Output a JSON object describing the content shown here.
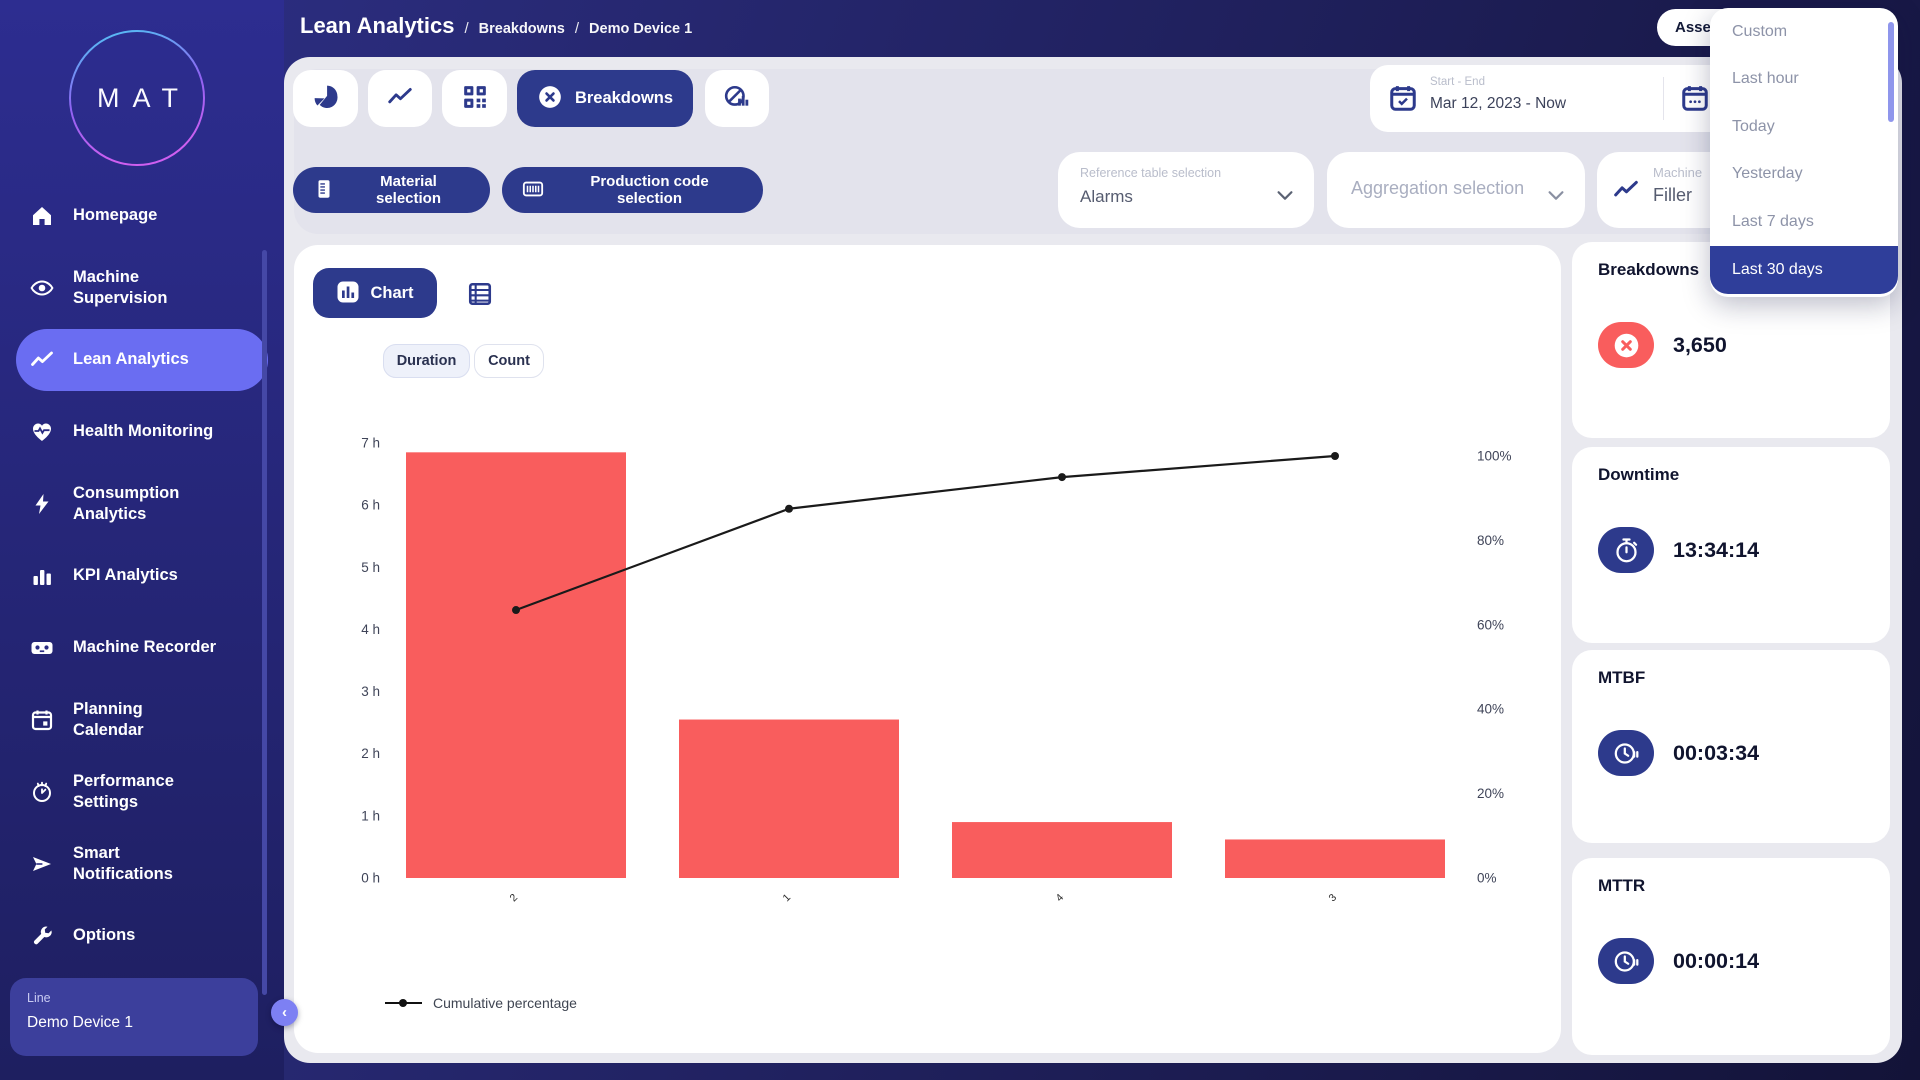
{
  "colors": {
    "accent": "#2d3a8c",
    "red": "#f95d5d",
    "sidebar_active": "#6a6df2",
    "menu_selected": "#2f3e9a"
  },
  "header": {
    "title": "Lean Analytics",
    "separator": "/",
    "crumbs": [
      "Breakdowns",
      "Demo Device 1"
    ],
    "assets_button": "Asse"
  },
  "time_menu": {
    "options": [
      "Custom",
      "Last hour",
      "Today",
      "Yesterday",
      "Last 7 days",
      "Last 30 days"
    ],
    "selected": "Last 30 days"
  },
  "sidebar": {
    "logo_text": "MAT",
    "items": [
      {
        "label": "Homepage",
        "icon": "home"
      },
      {
        "label": "Machine Supervision",
        "icon": "eye",
        "wrap": true
      },
      {
        "label": "Lean Analytics",
        "icon": "trend",
        "active": true
      },
      {
        "label": "Health Monitoring",
        "icon": "heart"
      },
      {
        "label": "Consumption Analytics",
        "icon": "bolt",
        "wrap": true
      },
      {
        "label": "KPI Analytics",
        "icon": "kpi"
      },
      {
        "label": "Machine Recorder",
        "icon": "recorder"
      },
      {
        "label": "Planning Calendar",
        "icon": "calendar",
        "wrap": true
      },
      {
        "label": "Performance Settings",
        "icon": "gauge",
        "wrap": true
      },
      {
        "label": "Smart Notifications",
        "icon": "send",
        "wrap": true
      },
      {
        "label": "Options",
        "icon": "wrench"
      }
    ],
    "device_card": {
      "label": "Line",
      "value": "Demo Device 1"
    }
  },
  "filters": {
    "views": [
      {
        "icon": "pie"
      },
      {
        "icon": "trend"
      },
      {
        "icon": "qr"
      },
      {
        "icon": "circle-x",
        "label": "Breakdowns",
        "active": true
      },
      {
        "icon": "stops-chart"
      }
    ],
    "material_button": "Material selection",
    "production_button": "Production code selection",
    "date_range": {
      "label": "Start - End",
      "value": "Mar 12, 2023 - Now"
    },
    "reference": {
      "label": "Reference table selection",
      "value": "Alarms"
    },
    "aggregation_placeholder": "Aggregation selection",
    "machine": {
      "label": "Machine",
      "value": "Filler"
    }
  },
  "chart_card": {
    "chart_button": "Chart",
    "duration_toggle": "Duration",
    "count_toggle": "Count",
    "active_toggle": "Duration",
    "legend": "Cumulative percentage"
  },
  "chart_data": {
    "type": "bar",
    "categories": [
      "2",
      "1",
      "4",
      "3"
    ],
    "series": [
      {
        "name": "Duration",
        "type": "bar",
        "unit": "h",
        "values": [
          6.85,
          2.55,
          0.9,
          0.62
        ]
      },
      {
        "name": "Cumulative percentage",
        "type": "line",
        "unit": "%",
        "values": [
          63.5,
          87.5,
          95,
          100
        ]
      }
    ],
    "y_left": {
      "ticks": [
        "7 h",
        "6 h",
        "5 h",
        "4 h",
        "3 h",
        "2 h",
        "1 h",
        "0 h"
      ],
      "lim": [
        0,
        7
      ]
    },
    "y_right": {
      "ticks": [
        "100%",
        "80%",
        "60%",
        "40%",
        "20%",
        "0%"
      ],
      "lim": [
        0,
        100
      ]
    },
    "grid": false,
    "legend_position": "bottom-left",
    "bar_color": "#f95d5d",
    "line_color": "#1a1a1a"
  },
  "kpis": [
    {
      "title": "Breakdowns",
      "value": "3,650",
      "icon": "circle-x-red",
      "icon_bg": "#f95d5d"
    },
    {
      "title": "Downtime",
      "value": "13:34:14",
      "icon": "stopwatch",
      "icon_bg": "#2d3a8c"
    },
    {
      "title": "MTBF",
      "value": "00:03:34",
      "icon": "clock-pause",
      "icon_bg": "#2d3a8c"
    },
    {
      "title": "MTTR",
      "value": "00:00:14",
      "icon": "clock-pause",
      "icon_bg": "#2d3a8c"
    }
  ]
}
